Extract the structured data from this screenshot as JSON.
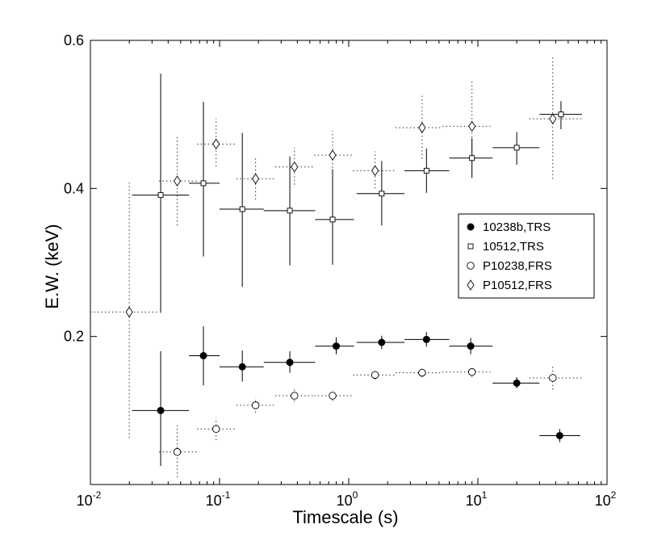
{
  "chart_data": {
    "type": "scatter",
    "xscale": "log",
    "xlim": [
      0.01,
      100
    ],
    "ylim": [
      0.0,
      0.6
    ],
    "xlabel": "Timescale (s)",
    "ylabel": "E.W. (keV)",
    "xticks": [
      {
        "value": 0.01,
        "base": "10",
        "exp": "-2"
      },
      {
        "value": 0.1,
        "base": "10",
        "exp": "-1"
      },
      {
        "value": 1,
        "base": "10",
        "exp": "0"
      },
      {
        "value": 10,
        "base": "10",
        "exp": "1"
      },
      {
        "value": 100,
        "base": "10",
        "exp": "2"
      }
    ],
    "yticks": [
      {
        "value": 0.2,
        "label": "0.2"
      },
      {
        "value": 0.4,
        "label": "0.4"
      },
      {
        "value": 0.6,
        "label": "0.6"
      }
    ],
    "legend_position": "right",
    "series": [
      {
        "name": "10238b,TRS",
        "marker": "filled-circle",
        "line": "solid",
        "points": [
          {
            "x": 0.035,
            "y": 0.1,
            "xlo": 0.021,
            "xhi": 0.058,
            "ylo": 0.025,
            "yhi": 0.18
          },
          {
            "x": 0.075,
            "y": 0.174,
            "xlo": 0.058,
            "xhi": 0.1,
            "ylo": 0.134,
            "yhi": 0.214
          },
          {
            "x": 0.15,
            "y": 0.159,
            "xlo": 0.1,
            "xhi": 0.22,
            "ylo": 0.139,
            "yhi": 0.181
          },
          {
            "x": 0.35,
            "y": 0.165,
            "xlo": 0.22,
            "xhi": 0.55,
            "ylo": 0.151,
            "yhi": 0.18
          },
          {
            "x": 0.8,
            "y": 0.187,
            "xlo": 0.55,
            "xhi": 1.1,
            "ylo": 0.176,
            "yhi": 0.199
          },
          {
            "x": 1.8,
            "y": 0.192,
            "xlo": 1.15,
            "xhi": 2.7,
            "ylo": 0.183,
            "yhi": 0.201
          },
          {
            "x": 4.0,
            "y": 0.196,
            "xlo": 2.7,
            "xhi": 6.0,
            "ylo": 0.186,
            "yhi": 0.206
          },
          {
            "x": 8.8,
            "y": 0.187,
            "xlo": 6.0,
            "xhi": 13.0,
            "ylo": 0.176,
            "yhi": 0.198
          },
          {
            "x": 20,
            "y": 0.137,
            "xlo": 13.0,
            "xhi": 30.0,
            "ylo": 0.13,
            "yhi": 0.145
          },
          {
            "x": 43,
            "y": 0.066,
            "xlo": 30.0,
            "xhi": 62.0,
            "ylo": 0.057,
            "yhi": 0.075
          }
        ]
      },
      {
        "name": "10512,TRS",
        "marker": "open-square",
        "line": "solid",
        "points": [
          {
            "x": 0.035,
            "y": 0.391,
            "xlo": 0.021,
            "xhi": 0.058,
            "ylo": 0.232,
            "yhi": 0.555
          },
          {
            "x": 0.075,
            "y": 0.407,
            "xlo": 0.058,
            "xhi": 0.1,
            "ylo": 0.308,
            "yhi": 0.517
          },
          {
            "x": 0.15,
            "y": 0.372,
            "xlo": 0.1,
            "xhi": 0.22,
            "ylo": 0.267,
            "yhi": 0.475
          },
          {
            "x": 0.35,
            "y": 0.37,
            "xlo": 0.22,
            "xhi": 0.55,
            "ylo": 0.296,
            "yhi": 0.443
          },
          {
            "x": 0.75,
            "y": 0.358,
            "xlo": 0.55,
            "xhi": 1.1,
            "ylo": 0.297,
            "yhi": 0.426
          },
          {
            "x": 1.8,
            "y": 0.393,
            "xlo": 1.15,
            "xhi": 2.7,
            "ylo": 0.35,
            "yhi": 0.437
          },
          {
            "x": 4.0,
            "y": 0.424,
            "xlo": 2.7,
            "xhi": 6.0,
            "ylo": 0.394,
            "yhi": 0.454
          },
          {
            "x": 9.0,
            "y": 0.441,
            "xlo": 6.0,
            "xhi": 13.0,
            "ylo": 0.414,
            "yhi": 0.468
          },
          {
            "x": 20,
            "y": 0.455,
            "xlo": 13.0,
            "xhi": 30.0,
            "ylo": 0.432,
            "yhi": 0.476
          },
          {
            "x": 44,
            "y": 0.5,
            "xlo": 30.0,
            "xhi": 64.0,
            "ylo": 0.48,
            "yhi": 0.518
          }
        ]
      },
      {
        "name": "P10238,FRS",
        "marker": "open-circle",
        "line": "dotted",
        "points": [
          {
            "x": 0.047,
            "y": 0.044,
            "xlo": 0.034,
            "xhi": 0.067,
            "ylo": 0.01,
            "yhi": 0.08
          },
          {
            "x": 0.094,
            "y": 0.075,
            "xlo": 0.067,
            "xhi": 0.135,
            "ylo": 0.06,
            "yhi": 0.09
          },
          {
            "x": 0.19,
            "y": 0.107,
            "xlo": 0.135,
            "xhi": 0.27,
            "ylo": 0.097,
            "yhi": 0.117
          },
          {
            "x": 0.38,
            "y": 0.12,
            "xlo": 0.27,
            "xhi": 0.54,
            "ylo": 0.112,
            "yhi": 0.129
          },
          {
            "x": 0.75,
            "y": 0.12,
            "xlo": 0.54,
            "xhi": 1.08,
            "ylo": 0.113,
            "yhi": 0.128
          },
          {
            "x": 1.6,
            "y": 0.148,
            "xlo": 1.08,
            "xhi": 2.3,
            "ylo": 0.142,
            "yhi": 0.155
          },
          {
            "x": 3.7,
            "y": 0.151,
            "xlo": 2.3,
            "xhi": 5.3,
            "ylo": 0.145,
            "yhi": 0.158
          },
          {
            "x": 9.0,
            "y": 0.152,
            "xlo": 5.3,
            "xhi": 12.5,
            "ylo": 0.145,
            "yhi": 0.16
          },
          {
            "x": 38,
            "y": 0.144,
            "xlo": 25.0,
            "xhi": 64.0,
            "ylo": 0.128,
            "yhi": 0.16
          }
        ]
      },
      {
        "name": "P10512,FRS",
        "marker": "open-diamond",
        "line": "dotted",
        "points": [
          {
            "x": 0.02,
            "y": 0.233,
            "xlo": 0.01,
            "xhi": 0.034,
            "ylo": 0.063,
            "yhi": 0.408
          },
          {
            "x": 0.047,
            "y": 0.41,
            "xlo": 0.034,
            "xhi": 0.067,
            "ylo": 0.35,
            "yhi": 0.47
          },
          {
            "x": 0.094,
            "y": 0.46,
            "xlo": 0.067,
            "xhi": 0.135,
            "ylo": 0.43,
            "yhi": 0.495
          },
          {
            "x": 0.19,
            "y": 0.413,
            "xlo": 0.135,
            "xhi": 0.27,
            "ylo": 0.385,
            "yhi": 0.443
          },
          {
            "x": 0.38,
            "y": 0.429,
            "xlo": 0.27,
            "xhi": 0.54,
            "ylo": 0.405,
            "yhi": 0.455
          },
          {
            "x": 0.75,
            "y": 0.445,
            "xlo": 0.54,
            "xhi": 1.08,
            "ylo": 0.413,
            "yhi": 0.478
          },
          {
            "x": 1.6,
            "y": 0.424,
            "xlo": 1.08,
            "xhi": 2.3,
            "ylo": 0.4,
            "yhi": 0.45
          },
          {
            "x": 3.7,
            "y": 0.482,
            "xlo": 2.3,
            "xhi": 5.3,
            "ylo": 0.44,
            "yhi": 0.528
          },
          {
            "x": 9.0,
            "y": 0.484,
            "xlo": 5.3,
            "xhi": 12.5,
            "ylo": 0.42,
            "yhi": 0.545
          },
          {
            "x": 38,
            "y": 0.494,
            "xlo": 25.0,
            "xhi": 64.0,
            "ylo": 0.413,
            "yhi": 0.577
          }
        ]
      }
    ]
  }
}
